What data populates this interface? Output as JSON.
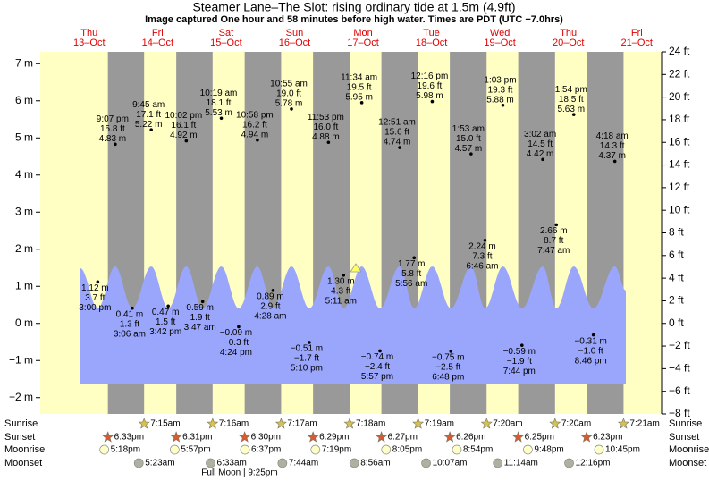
{
  "chart_data": {
    "type": "tide",
    "title": "Steamer Lane–The Slot: rising  ordinary tide at 1.5m (4.9ft)",
    "subtitle": "Image captured One hour and 58 minutes before high water. Times are PDT (UTC −7.0hrs)",
    "ylim": [
      -2.44,
      7.32
    ],
    "yticks": [
      {
        "value": 7,
        "label": "7 m"
      },
      {
        "value": 6,
        "label": "6 m"
      },
      {
        "value": 5,
        "label": "5 m"
      },
      {
        "value": 4,
        "label": "4 m"
      },
      {
        "value": 3,
        "label": "3 m"
      },
      {
        "value": 2,
        "label": "2 m"
      },
      {
        "value": 1,
        "label": "1 m"
      },
      {
        "value": 0,
        "label": "0 m"
      },
      {
        "value": -1,
        "label": "−1 m"
      },
      {
        "value": -2,
        "label": "−2 m"
      }
    ],
    "y2lim": [
      -8,
      24
    ],
    "y2ticks": [
      {
        "value": 24,
        "label": "24 ft"
      },
      {
        "value": 22,
        "label": "22 ft"
      },
      {
        "value": 20,
        "label": "20 ft"
      },
      {
        "value": 18,
        "label": "18 ft"
      },
      {
        "value": 16,
        "label": "16 ft"
      },
      {
        "value": 14,
        "label": "14 ft"
      },
      {
        "value": 12,
        "label": "12 ft"
      },
      {
        "value": 10,
        "label": "10 ft"
      },
      {
        "value": 8,
        "label": "8 ft"
      },
      {
        "value": 6,
        "label": "6 ft"
      },
      {
        "value": 4,
        "label": "4 ft"
      },
      {
        "value": 2,
        "label": "2 ft"
      },
      {
        "value": 0,
        "label": "0 ft"
      },
      {
        "value": -2,
        "label": "−2 ft"
      },
      {
        "value": -4,
        "label": "−4 ft"
      },
      {
        "value": -6,
        "label": "−6 ft"
      },
      {
        "value": -8,
        "label": "−8 ft"
      }
    ],
    "row_labels": [
      "Sunrise",
      "Sunset",
      "Moonrise",
      "Moonset"
    ],
    "full_moon": "Full Moon | 9:25pm",
    "days": [
      {
        "name": "Thu",
        "date": "13–Oct",
        "sunset": "6:33pm",
        "moonrise": "5:18pm",
        "tides": [
          {
            "time": "3:00 pm",
            "value": 1.12,
            "value_label": "1.12 m",
            "ft": "3.7 ft"
          },
          {
            "time": "9:07 pm",
            "value": 4.83,
            "value_label": "4.83 m",
            "ft": "15.8 ft"
          }
        ]
      },
      {
        "name": "Fri",
        "date": "14–Oct",
        "sunrise": "7:15am",
        "sunset": "6:31pm",
        "moonrise": "5:57pm",
        "moonset": "5:23am",
        "tides": [
          {
            "time": "3:06 am",
            "value": 0.41,
            "value_label": "0.41 m",
            "ft": "1.3 ft"
          },
          {
            "time": "9:45 am",
            "value": 5.22,
            "value_label": "5.22 m",
            "ft": "17.1 ft"
          },
          {
            "time": "3:42 pm",
            "value": 0.47,
            "value_label": "0.47 m",
            "ft": "1.5 ft"
          },
          {
            "time": "10:02 pm",
            "value": 4.92,
            "value_label": "4.92 m",
            "ft": "16.1 ft"
          }
        ]
      },
      {
        "name": "Sat",
        "date": "15–Oct",
        "sunrise": "7:16am",
        "sunset": "6:30pm",
        "moonrise": "6:37pm",
        "moonset": "6:33am",
        "tides": [
          {
            "time": "3:47 am",
            "value": 0.59,
            "value_label": "0.59 m",
            "ft": "1.9 ft"
          },
          {
            "time": "10:19 am",
            "value": 5.53,
            "value_label": "5.53 m",
            "ft": "18.1 ft"
          },
          {
            "time": "4:24 pm",
            "value": -0.09,
            "value_label": "−0.09 m",
            "ft": "−0.3 ft"
          },
          {
            "time": "10:58 pm",
            "value": 4.94,
            "value_label": "4.94 m",
            "ft": "16.2 ft"
          }
        ]
      },
      {
        "name": "Sun",
        "date": "16–Oct",
        "sunrise": "7:17am",
        "sunset": "6:29pm",
        "moonrise": "7:19pm",
        "moonset": "7:44am",
        "tides": [
          {
            "time": "4:28 am",
            "value": 0.89,
            "value_label": "0.89 m",
            "ft": "2.9 ft"
          },
          {
            "time": "10:55 am",
            "value": 5.78,
            "value_label": "5.78 m",
            "ft": "19.0 ft"
          },
          {
            "time": "5:10 pm",
            "value": -0.51,
            "value_label": "−0.51 m",
            "ft": "−1.7 ft"
          },
          {
            "time": "11:53 pm",
            "value": 4.88,
            "value_label": "4.88 m",
            "ft": "16.0 ft"
          }
        ]
      },
      {
        "name": "Mon",
        "date": "17–Oct",
        "sunrise": "7:18am",
        "sunset": "6:27pm",
        "moonrise": "8:05pm",
        "moonset": "8:56am",
        "tides": [
          {
            "time": "5:11 am",
            "value": 1.3,
            "value_label": "1.30 m",
            "ft": "4.3 ft"
          },
          {
            "time": "11:34 am",
            "value": 5.95,
            "value_label": "5.95 m",
            "ft": "19.5 ft"
          },
          {
            "time": "5:57 pm",
            "value": -0.74,
            "value_label": "−0.74 m",
            "ft": "−2.4 ft"
          }
        ]
      },
      {
        "name": "Tue",
        "date": "18–Oct",
        "sunrise": "7:19am",
        "sunset": "6:26pm",
        "moonrise": "8:54pm",
        "moonset": "10:07am",
        "tides": [
          {
            "time": "12:51 am",
            "value": 4.74,
            "value_label": "4.74 m",
            "ft": "15.6 ft"
          },
          {
            "time": "5:56 am",
            "value": 1.77,
            "value_label": "1.77 m",
            "ft": "5.8 ft"
          },
          {
            "time": "12:16 pm",
            "value": 5.98,
            "value_label": "5.98 m",
            "ft": "19.6 ft"
          },
          {
            "time": "6:48 pm",
            "value": -0.75,
            "value_label": "−0.75 m",
            "ft": "−2.5 ft"
          }
        ]
      },
      {
        "name": "Wed",
        "date": "19–Oct",
        "sunrise": "7:20am",
        "sunset": "6:25pm",
        "moonrise": "9:48pm",
        "moonset": "11:14am",
        "tides": [
          {
            "time": "1:53 am",
            "value": 4.57,
            "value_label": "4.57 m",
            "ft": "15.0 ft"
          },
          {
            "time": "6:46 am",
            "value": 2.24,
            "value_label": "2.24 m",
            "ft": "7.3 ft"
          },
          {
            "time": "1:03 pm",
            "value": 5.88,
            "value_label": "5.88 m",
            "ft": "19.3 ft"
          },
          {
            "time": "7:44 pm",
            "value": -0.59,
            "value_label": "−0.59 m",
            "ft": "−1.9 ft"
          }
        ]
      },
      {
        "name": "Thu",
        "date": "20–Oct",
        "sunrise": "7:20am",
        "sunset": "6:23pm",
        "moonrise": "10:45pm",
        "moonset": "12:16pm",
        "tides": [
          {
            "time": "3:02 am",
            "value": 4.42,
            "value_label": "4.42 m",
            "ft": "14.5 ft"
          },
          {
            "time": "7:47 am",
            "value": 2.66,
            "value_label": "2.66 m",
            "ft": "8.7 ft"
          },
          {
            "time": "1:54 pm",
            "value": 5.63,
            "value_label": "5.63 m",
            "ft": "18.5 ft"
          },
          {
            "time": "8:46 pm",
            "value": -0.31,
            "value_label": "−0.31 m",
            "ft": "−1.0 ft"
          }
        ]
      },
      {
        "name": "Fri",
        "date": "21–Oct",
        "sunrise": "7:21am",
        "tides": [
          {
            "time": "4:18 am",
            "value": 4.37,
            "value_label": "4.37 m",
            "ft": "14.3 ft"
          }
        ]
      }
    ]
  }
}
